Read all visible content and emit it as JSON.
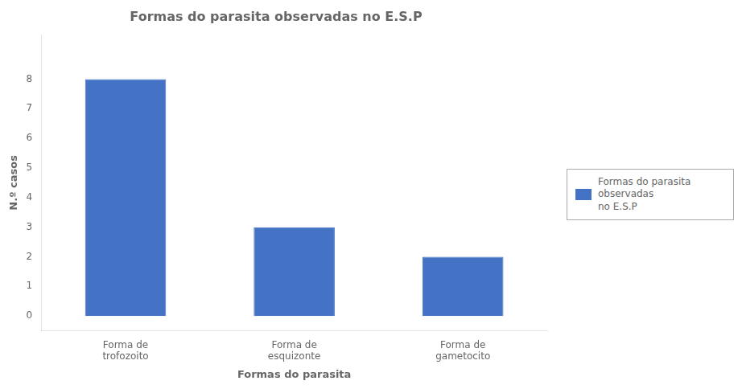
{
  "chart_data": {
    "type": "bar",
    "title": "Formas do parasita observadas no E.S.P",
    "categories": [
      "Forma de\ntrofozoito",
      "Forma de\nesquizonte",
      "Forma de\ngametocito"
    ],
    "series": [
      {
        "name": "Formas do parasita observadas\nno E.S.P",
        "color": "#4472c4",
        "values": [
          8,
          3,
          2
        ]
      }
    ],
    "xlabel": "Formas do parasita",
    "ylabel": "N.º casos",
    "ylim": [
      -0.5,
      9.5
    ],
    "yticks": [
      0,
      1,
      2,
      3,
      4,
      5,
      6,
      7,
      8
    ],
    "grid": false,
    "legend": "right"
  }
}
